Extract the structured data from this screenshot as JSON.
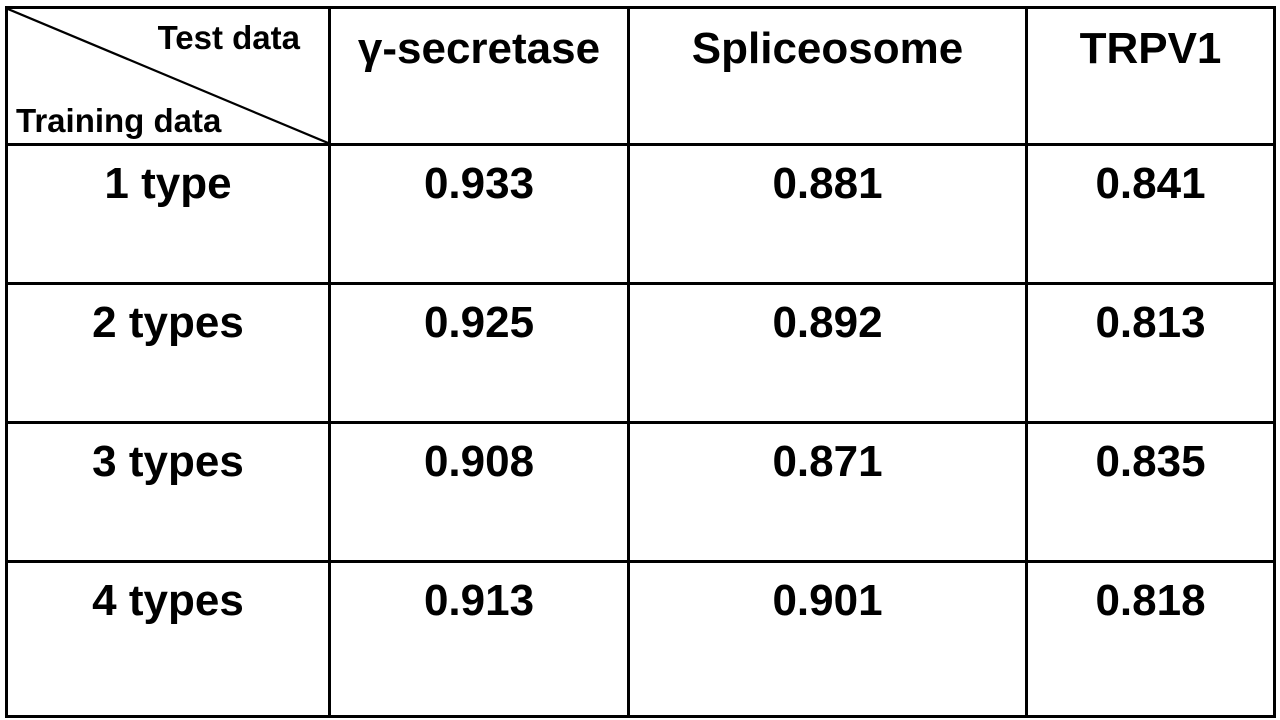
{
  "chart_data": {
    "type": "table",
    "corner_header": {
      "column_axis_label": "Test data",
      "row_axis_label": "Training data"
    },
    "columns": [
      "γ-secretase",
      "Spliceosome",
      "TRPV1"
    ],
    "rows": [
      {
        "label": "1 type",
        "values": [
          "0.933",
          "0.881",
          "0.841"
        ]
      },
      {
        "label": "2 types",
        "values": [
          "0.925",
          "0.892",
          "0.813"
        ]
      },
      {
        "label": "3 types",
        "values": [
          "0.908",
          "0.871",
          "0.835"
        ]
      },
      {
        "label": "4 types",
        "values": [
          "0.913",
          "0.901",
          "0.818"
        ]
      }
    ]
  }
}
